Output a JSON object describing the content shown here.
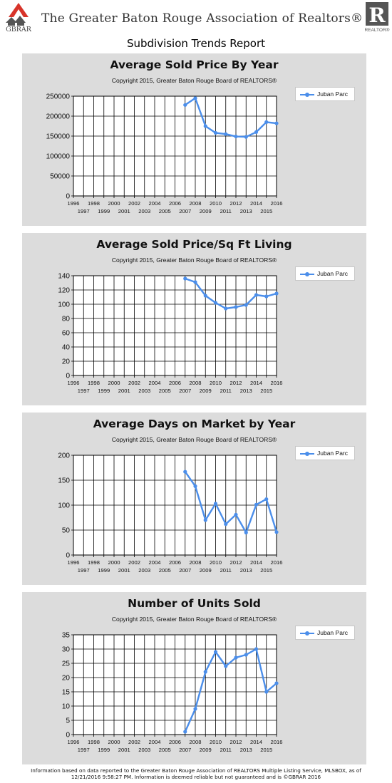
{
  "header": {
    "logo_left_text": "GBRAR",
    "org_name": "The Greater Baton Rouge Association of Realtors®",
    "logo_right_text": "REALTOR®"
  },
  "report_title": "Subdivision Trends Report",
  "colors": {
    "series": "#4b8eea",
    "panel": "#dcdcdc",
    "plot": "#ffffff",
    "grid": "#000000"
  },
  "chart_data": [
    {
      "type": "line",
      "title": "Average Sold Price By Year",
      "subtitle": "Copyright 2015, Greater Baton Rouge Board of REALTORS®",
      "legend": {
        "label": "Juban Parc",
        "placement": "top-right"
      },
      "xlim": [
        1996,
        2016
      ],
      "ylim": [
        0,
        250000
      ],
      "ytick_step": 50000,
      "yticks": [
        "0",
        "50000",
        "100000",
        "150000",
        "200000",
        "250000"
      ],
      "xticks_top": [
        "1996",
        "1998",
        "2000",
        "2002",
        "2004",
        "2006",
        "2008",
        "2010",
        "2012",
        "2014",
        "2016"
      ],
      "xticks_bottom": [
        "1997",
        "1999",
        "2001",
        "2003",
        "2005",
        "2007",
        "2009",
        "2011",
        "2013",
        "2015"
      ],
      "grid": true,
      "series": [
        {
          "name": "Juban Parc",
          "x": [
            2007,
            2008,
            2009,
            2010,
            2011,
            2012,
            2013,
            2014,
            2015,
            2016
          ],
          "y": [
            228000,
            245000,
            175000,
            158000,
            155000,
            149000,
            148000,
            160000,
            185000,
            182000
          ]
        }
      ]
    },
    {
      "type": "line",
      "title": "Average Sold Price/Sq Ft Living",
      "subtitle": "Copyright 2015, Greater Baton Rouge Board of REALTORS®",
      "legend": {
        "label": "Juban Parc",
        "placement": "top-right"
      },
      "xlim": [
        1996,
        2016
      ],
      "ylim": [
        0,
        140
      ],
      "ytick_step": 20,
      "yticks": [
        "0",
        "20",
        "40",
        "60",
        "80",
        "100",
        "120",
        "140"
      ],
      "xticks_top": [
        "1996",
        "1998",
        "2000",
        "2002",
        "2004",
        "2006",
        "2008",
        "2010",
        "2012",
        "2014",
        "2016"
      ],
      "xticks_bottom": [
        "1997",
        "1999",
        "2001",
        "2003",
        "2005",
        "2007",
        "2009",
        "2011",
        "2013",
        "2015"
      ],
      "grid": true,
      "series": [
        {
          "name": "Juban Parc",
          "x": [
            2007,
            2008,
            2009,
            2010,
            2011,
            2012,
            2013,
            2014,
            2015,
            2016
          ],
          "y": [
            136,
            131,
            112,
            102,
            94,
            96,
            99,
            113,
            111,
            115
          ]
        }
      ]
    },
    {
      "type": "line",
      "title": "Average Days on Market by Year",
      "subtitle": "Copyright 2015, Greater Baton Rouge Board of REALTORS®",
      "legend": {
        "label": "Juban Parc",
        "placement": "top-right"
      },
      "xlim": [
        1996,
        2016
      ],
      "ylim": [
        0,
        200
      ],
      "ytick_step": 50,
      "yticks": [
        "0",
        "50",
        "100",
        "150",
        "200"
      ],
      "xticks_top": [
        "1996",
        "1998",
        "2000",
        "2002",
        "2004",
        "2006",
        "2008",
        "2010",
        "2012",
        "2014",
        "2016"
      ],
      "xticks_bottom": [
        "1997",
        "1999",
        "2001",
        "2003",
        "2005",
        "2007",
        "2009",
        "2011",
        "2013",
        "2015"
      ],
      "grid": true,
      "series": [
        {
          "name": "Juban Parc",
          "x": [
            2007,
            2008,
            2009,
            2010,
            2011,
            2012,
            2013,
            2014,
            2015,
            2016
          ],
          "y": [
            167,
            138,
            70,
            103,
            62,
            81,
            45,
            101,
            112,
            46
          ]
        }
      ]
    },
    {
      "type": "line",
      "title": "Number of Units Sold",
      "subtitle": "Copyright 2015, Greater Baton Rouge Board of REALTORS®",
      "legend": {
        "label": "Juban Parc",
        "placement": "top-right"
      },
      "xlim": [
        1996,
        2016
      ],
      "ylim": [
        0,
        35
      ],
      "ytick_step": 5,
      "yticks": [
        "0",
        "5",
        "10",
        "15",
        "20",
        "25",
        "30",
        "35"
      ],
      "xticks_top": [
        "1996",
        "1998",
        "2000",
        "2002",
        "2004",
        "2006",
        "2008",
        "2010",
        "2012",
        "2014",
        "2016"
      ],
      "xticks_bottom": [
        "1997",
        "1999",
        "2001",
        "2003",
        "2005",
        "2007",
        "2009",
        "2011",
        "2013",
        "2015"
      ],
      "grid": true,
      "series": [
        {
          "name": "Juban Parc",
          "x": [
            2007,
            2008,
            2009,
            2010,
            2011,
            2012,
            2013,
            2014,
            2015,
            2016
          ],
          "y": [
            1,
            9,
            22,
            29,
            24,
            27,
            28,
            30,
            15,
            18
          ]
        }
      ]
    }
  ],
  "footer": {
    "line1": "Information based on data reported to the Greater Baton Rouge Association of REALTORS Multiple Listing Service, MLSBOX, as of",
    "line2": "12/21/2016 9:58:27 PM. Information is deemed reliable but not guaranteed and is ©GBRAR 2016"
  }
}
